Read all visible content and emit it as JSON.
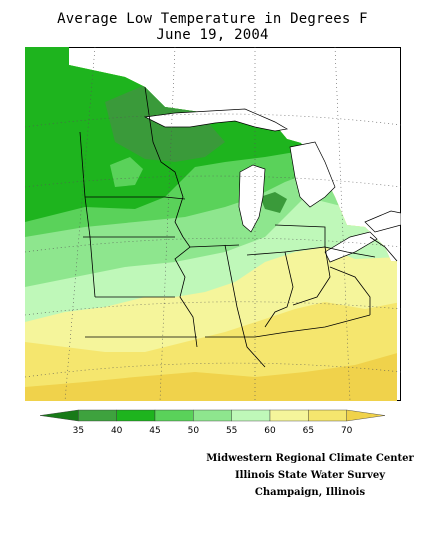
{
  "title": {
    "line1": "Average Low Temperature in Degrees F",
    "line2": "June 19, 2004"
  },
  "legend": {
    "ticks": [
      "35",
      "40",
      "45",
      "50",
      "55",
      "60",
      "65",
      "70"
    ],
    "colors": [
      "#187a18",
      "#3ea23e",
      "#1eb41e",
      "#5ad25a",
      "#8ee68e",
      "#bff8b9",
      "#f5f59b",
      "#f5e66e",
      "#f0d24b"
    ]
  },
  "map_colors": {
    "dark_green": "#3a9a3a",
    "green": "#1eb41e",
    "medium_green": "#5ad25a",
    "light_green": "#8ee68e",
    "pale_green": "#bff8b9",
    "pale_yellow": "#f5f59b",
    "yellow": "#f5e66e",
    "gold": "#f0d24b",
    "water": "#ffffff"
  },
  "credits": {
    "line1": "Midwestern Regional Climate Center",
    "line2": "Illinois State Water Survey",
    "line3": "Champaign, Illinois"
  }
}
